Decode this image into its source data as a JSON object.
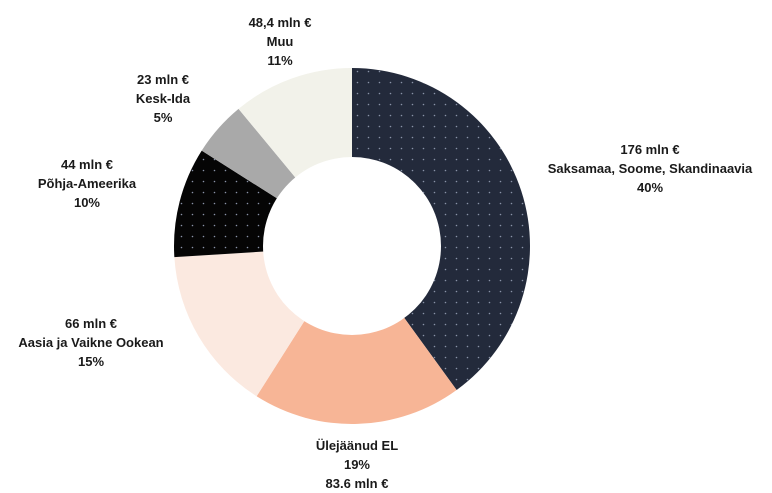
{
  "chart_data": {
    "type": "pie",
    "donut": true,
    "title": "",
    "slices": [
      {
        "name": "Saksamaa, Soome, Skandinaavia",
        "value_label": "176 mln €",
        "amount": 176,
        "percent_label": "40%",
        "percent": 40,
        "color": "#232a3b",
        "pattern": "dots-light"
      },
      {
        "name": "Ülejäänud EL",
        "value_label": "83.6 mln €",
        "amount": 83.6,
        "percent_label": "19%",
        "percent": 19,
        "color": "#f7b596",
        "pattern": "none"
      },
      {
        "name": "Aasia ja Vaikne Ookean",
        "value_label": "66 mln €",
        "amount": 66,
        "percent_label": "15%",
        "percent": 15,
        "color": "#fbe9e0",
        "pattern": "none"
      },
      {
        "name": "Põhja-Ameerika",
        "value_label": "44 mln €",
        "amount": 44,
        "percent_label": "10%",
        "percent": 10,
        "color": "#050505",
        "pattern": "dots-light"
      },
      {
        "name": "Kesk-Ida",
        "value_label": "23 mln €",
        "amount": 23,
        "percent_label": "5%",
        "percent": 5,
        "color": "#a9a9a9",
        "pattern": "none"
      },
      {
        "name": "Muu",
        "value_label": "48,4 mln €",
        "amount": 48.4,
        "percent_label": "11%",
        "percent": 11,
        "color": "#f2f2ea",
        "pattern": "none"
      }
    ]
  }
}
